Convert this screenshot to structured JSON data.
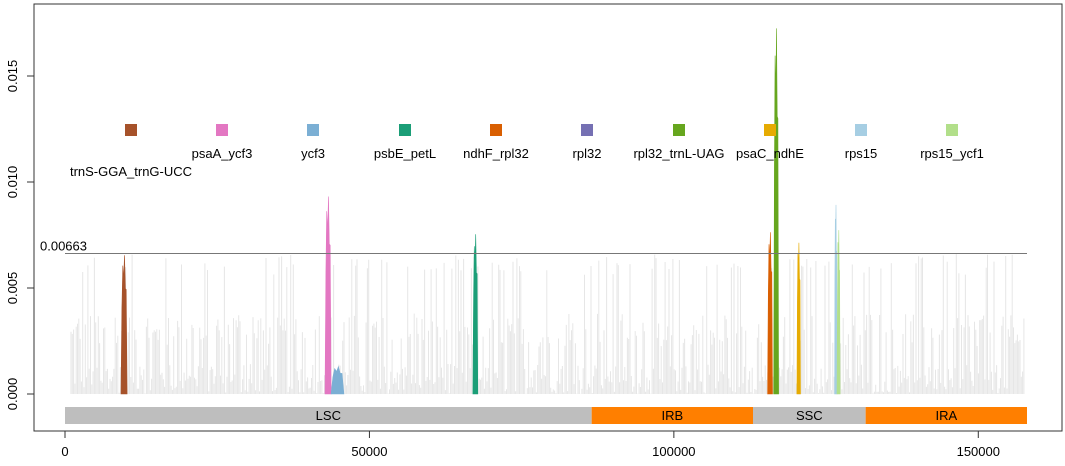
{
  "chart_data": {
    "type": "area",
    "title": "",
    "xlabel": "",
    "ylabel": "",
    "xlim": [
      0,
      158000
    ],
    "ylim": [
      0,
      0.0175
    ],
    "x_ticks": [
      0,
      50000,
      100000,
      150000
    ],
    "x_tick_labels": [
      "0",
      "50000",
      "100000",
      "150000"
    ],
    "y_ticks": [
      0.0,
      0.005,
      0.01,
      0.015
    ],
    "y_tick_labels": [
      "0.000",
      "0.005",
      "0.010",
      "0.015"
    ],
    "threshold": {
      "value": 0.00663,
      "label": "0.00663"
    },
    "background_color": "#e6e6e6",
    "regions": [
      {
        "name": "LSC",
        "start": 0,
        "end": 86500,
        "color": "#bebebe"
      },
      {
        "name": "IRB",
        "start": 86500,
        "end": 113000,
        "color": "#ff7f00"
      },
      {
        "name": "SSC",
        "start": 113000,
        "end": 131500,
        "color": "#bebebe"
      },
      {
        "name": "IRA",
        "start": 131500,
        "end": 158000,
        "color": "#ff7f00"
      }
    ],
    "legend": [
      {
        "name": "trnS-GGA_trnG-UCC",
        "color": "#a6522a"
      },
      {
        "name": "psaA_ycf3",
        "color": "#e377c2"
      },
      {
        "name": "ycf3",
        "color": "#7bafd4"
      },
      {
        "name": "psbE_petL",
        "color": "#1b9e77"
      },
      {
        "name": "ndhF_rpl32",
        "color": "#d95f02"
      },
      {
        "name": "rpl32",
        "color": "#7570b3"
      },
      {
        "name": "rpl32_trnL-UAG",
        "color": "#66a61e"
      },
      {
        "name": "psaC_ndhE",
        "color": "#e6ab02"
      },
      {
        "name": "rps15",
        "color": "#a6cee3"
      },
      {
        "name": "rps15_ycf1",
        "color": "#b2df8a"
      }
    ],
    "highlight_peaks": [
      {
        "name": "trnS-GGA_trnG-UCC",
        "color": "#a6522a",
        "start": 9200,
        "end": 10200,
        "peak": 0.0066
      },
      {
        "name": "psaA_ycf3",
        "color": "#e377c2",
        "start": 42700,
        "end": 43700,
        "peak": 0.0094
      },
      {
        "name": "ycf3",
        "color": "#7bafd4",
        "start": 43700,
        "end": 45800,
        "peak": 0.0013
      },
      {
        "name": "psbE_petL",
        "color": "#1b9e77",
        "start": 67000,
        "end": 67800,
        "peak": 0.0076
      },
      {
        "name": "ndhF_rpl32",
        "color": "#d95f02",
        "start": 115400,
        "end": 116200,
        "peak": 0.0077
      },
      {
        "name": "rpl32_trnL-UAG",
        "color": "#66a61e",
        "start": 116400,
        "end": 117200,
        "peak": 0.0174
      },
      {
        "name": "psaC_ndhE",
        "color": "#e6ab02",
        "start": 120200,
        "end": 120800,
        "peak": 0.0072
      },
      {
        "name": "rps15",
        "color": "#a6cee3",
        "start": 126400,
        "end": 126800,
        "peak": 0.009
      },
      {
        "name": "rps15_ycf1",
        "color": "#b2df8a",
        "start": 126800,
        "end": 127300,
        "peak": 0.0078
      }
    ]
  }
}
